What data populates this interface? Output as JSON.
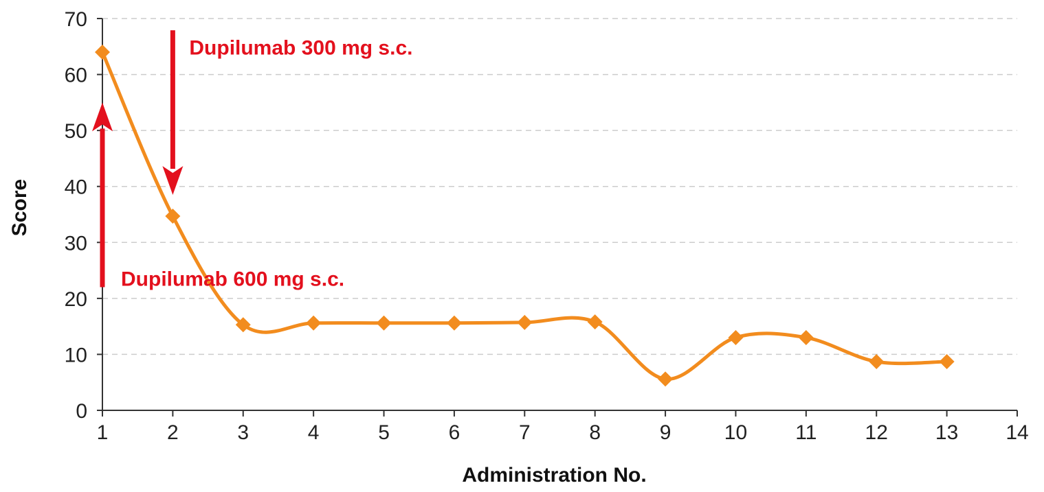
{
  "chart_data": {
    "type": "line",
    "xlabel": "Administration No.",
    "ylabel": "Score",
    "xlim": [
      1,
      14
    ],
    "ylim": [
      0,
      70
    ],
    "xticks": [
      1,
      2,
      3,
      4,
      5,
      6,
      7,
      8,
      9,
      10,
      11,
      12,
      13,
      14
    ],
    "yticks": [
      0,
      10,
      20,
      30,
      40,
      50,
      60,
      70
    ],
    "grid": "horizontal dashed",
    "line_style": "smooth",
    "marker": "diamond",
    "series": [
      {
        "color": "#F28C1E",
        "points": [
          {
            "x": 1,
            "y": 64
          },
          {
            "x": 2,
            "y": 34.7
          },
          {
            "x": 3,
            "y": 15.3
          },
          {
            "x": 4,
            "y": 15.6
          },
          {
            "x": 5,
            "y": 15.6
          },
          {
            "x": 6,
            "y": 15.6
          },
          {
            "x": 7,
            "y": 15.7
          },
          {
            "x": 8,
            "y": 15.8
          },
          {
            "x": 9,
            "y": 5.6
          },
          {
            "x": 10,
            "y": 13
          },
          {
            "x": 11,
            "y": 13
          },
          {
            "x": 12,
            "y": 8.7
          },
          {
            "x": 13,
            "y": 8.7
          }
        ]
      }
    ],
    "annotations": [
      {
        "text": "Dupilumab 300 mg s.c.",
        "at_x": 2,
        "direction": "down",
        "arrow_from_y": 67.9,
        "arrow_to_y": 38.5,
        "text_y": 64.8
      },
      {
        "text": "Dupilumab 600 mg s.c.",
        "at_x": 1,
        "direction": "up",
        "arrow_from_y": 22,
        "arrow_to_y": 55,
        "text_y": 23.5
      }
    ],
    "annotation_color": "#E3101D"
  }
}
